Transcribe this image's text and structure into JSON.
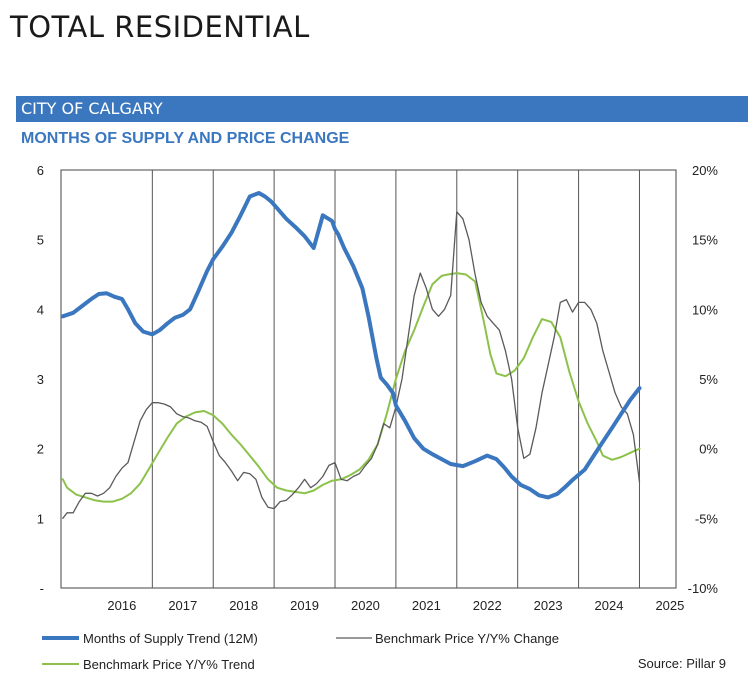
{
  "header": {
    "title": "TOTAL RESIDENTIAL"
  },
  "band": {
    "label": "CITY OF CALGARY"
  },
  "source": "Source: Pillar 9",
  "colors": {
    "band": "#3a77bf",
    "supply": "#3a77bf",
    "price_change": "#5a5a5a",
    "price_trend": "#8cc24a",
    "grid": "#555555"
  },
  "chart_data": {
    "type": "line",
    "title": "MONTHS OF SUPPLY AND PRICE CHANGE",
    "xlabel": "",
    "x_ticks": [
      "2016",
      "2017",
      "2018",
      "2019",
      "2020",
      "2021",
      "2022",
      "2023",
      "2024",
      "2025"
    ],
    "xlim": [
      2015.5,
      2025.6
    ],
    "y_left": {
      "lim": [
        0,
        6
      ],
      "ticks": [
        "-",
        "1",
        "2",
        "3",
        "4",
        "5",
        "6"
      ]
    },
    "y_right": {
      "lim": [
        -10,
        20
      ],
      "ticks": [
        "-10%",
        "-5%",
        "0%",
        "5%",
        "10%",
        "15%",
        "20%"
      ]
    },
    "grid": "vertical",
    "legend_position": "bottom",
    "series": [
      {
        "name": "Months of Supply Trend (12M)",
        "axis": "left",
        "x": [
          2015.53,
          2015.7,
          2015.85,
          2016.0,
          2016.12,
          2016.25,
          2016.38,
          2016.5,
          2016.6,
          2016.72,
          2016.85,
          2017.0,
          2017.12,
          2017.25,
          2017.37,
          2017.5,
          2017.62,
          2017.75,
          2017.9,
          2018.0,
          2018.15,
          2018.3,
          2018.45,
          2018.6,
          2018.75,
          2018.85,
          2018.95,
          2019.05,
          2019.2,
          2019.35,
          2019.5,
          2019.65,
          2019.8,
          2019.95,
          2020.0,
          2020.05,
          2020.15,
          2020.3,
          2020.45,
          2020.55,
          2020.68,
          2020.75,
          2020.85,
          2020.95,
          2021.0,
          2021.15,
          2021.3,
          2021.45,
          2021.6,
          2021.75,
          2021.9,
          2022.1,
          2022.3,
          2022.5,
          2022.65,
          2022.78,
          2022.9,
          2023.05,
          2023.2,
          2023.35,
          2023.5,
          2023.65,
          2023.78,
          2023.9,
          2024.1,
          2024.25,
          2024.4,
          2024.55,
          2024.7,
          2024.85,
          2025.0
        ],
        "values": [
          3.9,
          3.95,
          4.05,
          4.15,
          4.22,
          4.23,
          4.18,
          4.15,
          4.0,
          3.8,
          3.68,
          3.64,
          3.7,
          3.8,
          3.88,
          3.92,
          4.0,
          4.25,
          4.55,
          4.72,
          4.9,
          5.1,
          5.35,
          5.62,
          5.67,
          5.62,
          5.55,
          5.45,
          5.3,
          5.18,
          5.05,
          4.88,
          5.35,
          5.27,
          5.15,
          5.08,
          4.88,
          4.62,
          4.3,
          3.9,
          3.3,
          3.02,
          2.92,
          2.8,
          2.62,
          2.4,
          2.15,
          2.0,
          1.92,
          1.85,
          1.78,
          1.75,
          1.82,
          1.9,
          1.85,
          1.73,
          1.6,
          1.48,
          1.42,
          1.33,
          1.3,
          1.35,
          1.45,
          1.55,
          1.7,
          1.9,
          2.1,
          2.3,
          2.5,
          2.7,
          2.87
        ]
      },
      {
        "name": "Benchmark Price Y/Y% Change",
        "axis": "right",
        "x": [
          2015.53,
          2015.6,
          2015.7,
          2015.8,
          2015.9,
          2016.0,
          2016.1,
          2016.2,
          2016.3,
          2016.4,
          2016.5,
          2016.6,
          2016.7,
          2016.8,
          2016.9,
          2017.0,
          2017.1,
          2017.2,
          2017.3,
          2017.4,
          2017.5,
          2017.6,
          2017.7,
          2017.8,
          2017.9,
          2018.0,
          2018.1,
          2018.2,
          2018.3,
          2018.4,
          2018.5,
          2018.6,
          2018.7,
          2018.8,
          2018.9,
          2019.0,
          2019.1,
          2019.2,
          2019.3,
          2019.4,
          2019.5,
          2019.6,
          2019.7,
          2019.8,
          2019.9,
          2020.0,
          2020.1,
          2020.2,
          2020.3,
          2020.4,
          2020.5,
          2020.6,
          2020.7,
          2020.8,
          2020.9,
          2021.0,
          2021.1,
          2021.2,
          2021.3,
          2021.4,
          2021.5,
          2021.6,
          2021.7,
          2021.8,
          2021.9,
          2022.0,
          2022.1,
          2022.2,
          2022.3,
          2022.4,
          2022.5,
          2022.6,
          2022.7,
          2022.8,
          2022.9,
          2023.0,
          2023.1,
          2023.2,
          2023.3,
          2023.4,
          2023.5,
          2023.6,
          2023.7,
          2023.8,
          2023.9,
          2024.0,
          2024.1,
          2024.2,
          2024.3,
          2024.4,
          2024.5,
          2024.6,
          2024.7,
          2024.8,
          2024.9,
          2025.0
        ],
        "values": [
          -5,
          -4.6,
          -4.6,
          -3.8,
          -3.2,
          -3.2,
          -3.4,
          -3.2,
          -2.8,
          -2,
          -1.4,
          -1,
          0.5,
          2,
          2.8,
          3.3,
          3.3,
          3.2,
          3,
          2.5,
          2.3,
          2.2,
          2,
          1.9,
          1.6,
          0.5,
          -0.5,
          -1,
          -1.6,
          -2.3,
          -1.7,
          -1.8,
          -2.2,
          -3.5,
          -4.2,
          -4.3,
          -3.8,
          -3.7,
          -3.3,
          -2.8,
          -2.2,
          -2.8,
          -2.5,
          -2,
          -1.2,
          -1,
          -2.2,
          -2.3,
          -2,
          -1.8,
          -1.2,
          -0.7,
          0.3,
          1.8,
          1.5,
          3,
          5,
          8,
          11,
          12.6,
          11.5,
          10,
          9.5,
          10,
          11,
          17,
          16.5,
          15,
          12.5,
          10.5,
          9.5,
          9,
          8.5,
          7,
          5,
          1.5,
          -0.7,
          -0.4,
          1.5,
          4,
          6,
          8,
          10.5,
          10.7,
          9.8,
          10.5,
          10.5,
          10,
          9,
          7,
          5.5,
          4,
          3,
          2.5,
          1,
          -2.4
        ]
      },
      {
        "name": "Benchmark Price Y/Y% Trend",
        "axis": "right",
        "x": [
          2015.53,
          2015.6,
          2015.75,
          2015.9,
          2016.05,
          2016.2,
          2016.35,
          2016.5,
          2016.65,
          2016.8,
          2016.95,
          2017.1,
          2017.25,
          2017.4,
          2017.55,
          2017.7,
          2017.85,
          2018.0,
          2018.15,
          2018.3,
          2018.45,
          2018.6,
          2018.75,
          2018.9,
          2019.05,
          2019.2,
          2019.35,
          2019.5,
          2019.65,
          2019.8,
          2019.95,
          2020.1,
          2020.25,
          2020.4,
          2020.55,
          2020.7,
          2020.85,
          2021.0,
          2021.15,
          2021.3,
          2021.45,
          2021.6,
          2021.75,
          2021.85,
          2022.0,
          2022.15,
          2022.3,
          2022.45,
          2022.55,
          2022.65,
          2022.8,
          2022.95,
          2023.1,
          2023.25,
          2023.4,
          2023.55,
          2023.7,
          2023.85,
          2024.0,
          2024.15,
          2024.3,
          2024.4,
          2024.55,
          2024.7,
          2024.85,
          2025.0
        ],
        "values": [
          -2.2,
          -2.8,
          -3.3,
          -3.5,
          -3.7,
          -3.8,
          -3.8,
          -3.6,
          -3.2,
          -2.5,
          -1.4,
          -0.3,
          0.8,
          1.8,
          2.3,
          2.6,
          2.7,
          2.4,
          1.8,
          1,
          0.3,
          -0.5,
          -1.3,
          -2.2,
          -2.8,
          -3,
          -3.1,
          -3.2,
          -3.0,
          -2.6,
          -2.3,
          -2.2,
          -1.9,
          -1.5,
          -0.8,
          0.3,
          2.5,
          5,
          7,
          8.5,
          10.2,
          11.8,
          12.4,
          12.5,
          12.6,
          12.5,
          12,
          9,
          6.8,
          5.4,
          5.2,
          5.6,
          6.5,
          8,
          9.3,
          9.1,
          8,
          5.5,
          3.4,
          1.8,
          0.5,
          -0.5,
          -0.8,
          -0.6,
          -0.3,
          0
        ]
      }
    ]
  }
}
